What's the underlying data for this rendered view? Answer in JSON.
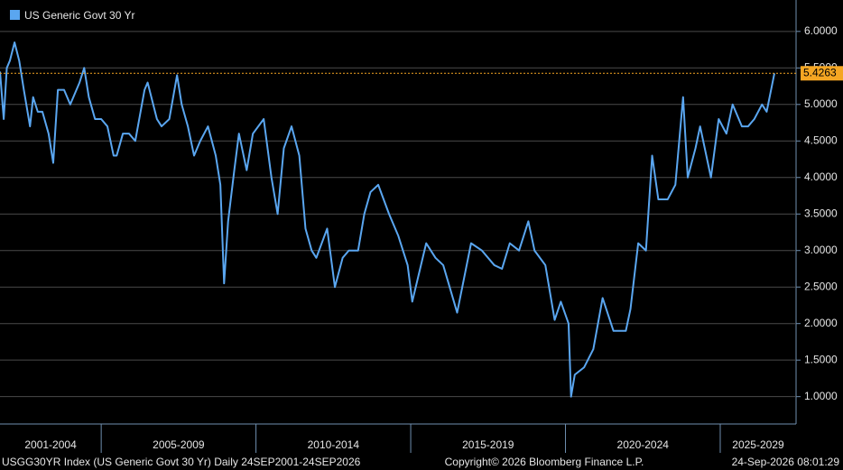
{
  "chart_data": {
    "type": "line",
    "x": [
      2001.73,
      2001.85,
      2001.95,
      2002.05,
      2002.2,
      2002.35,
      2002.5,
      2002.7,
      2002.8,
      2002.95,
      2003.1,
      2003.3,
      2003.45,
      2003.6,
      2003.8,
      2004.0,
      2004.3,
      2004.45,
      2004.6,
      2004.8,
      2005.0,
      2005.2,
      2005.4,
      2005.5,
      2005.7,
      2005.9,
      2006.1,
      2006.4,
      2006.5,
      2006.8,
      2006.95,
      2007.2,
      2007.45,
      2007.6,
      2007.8,
      2008.0,
      2008.2,
      2008.45,
      2008.7,
      2008.85,
      2008.97,
      2009.1,
      2009.3,
      2009.45,
      2009.7,
      2009.9,
      2010.25,
      2010.5,
      2010.7,
      2010.9,
      2011.15,
      2011.4,
      2011.6,
      2011.8,
      2011.95,
      2012.3,
      2012.55,
      2012.8,
      2013.0,
      2013.3,
      2013.5,
      2013.7,
      2013.95,
      2014.3,
      2014.6,
      2014.9,
      2015.05,
      2015.5,
      2015.8,
      2016.05,
      2016.5,
      2016.95,
      2017.3,
      2017.7,
      2017.95,
      2018.2,
      2018.5,
      2018.8,
      2019.0,
      2019.35,
      2019.65,
      2019.85,
      2020.1,
      2020.18,
      2020.3,
      2020.6,
      2020.9,
      2021.2,
      2021.55,
      2021.95,
      2022.1,
      2022.35,
      2022.6,
      2022.8,
      2023.0,
      2023.3,
      2023.55,
      2023.8,
      2023.95,
      2024.2,
      2024.35,
      2024.7,
      2024.95,
      2025.2,
      2025.4,
      2025.7,
      2025.9,
      2026.1,
      2026.35,
      2026.5,
      2026.75
    ],
    "series": [
      {
        "name": "US Generic Govt 30 Yr",
        "color": "#5aa6f0",
        "values": [
          5.45,
          4.8,
          5.5,
          5.6,
          5.85,
          5.6,
          5.2,
          4.7,
          5.1,
          4.9,
          4.9,
          4.6,
          4.2,
          5.2,
          5.2,
          5.0,
          5.3,
          5.5,
          5.1,
          4.8,
          4.8,
          4.7,
          4.3,
          4.3,
          4.6,
          4.6,
          4.5,
          5.2,
          5.3,
          4.8,
          4.7,
          4.8,
          5.4,
          5.0,
          4.7,
          4.3,
          4.5,
          4.7,
          4.3,
          3.9,
          2.55,
          3.4,
          4.1,
          4.6,
          4.1,
          4.6,
          4.8,
          4.0,
          3.5,
          4.4,
          4.7,
          4.3,
          3.3,
          3.0,
          2.9,
          3.3,
          2.5,
          2.9,
          3.0,
          3.0,
          3.5,
          3.8,
          3.9,
          3.5,
          3.2,
          2.8,
          2.3,
          3.1,
          2.9,
          2.8,
          2.15,
          3.1,
          3.0,
          2.8,
          2.75,
          3.1,
          3.0,
          3.4,
          3.0,
          2.8,
          2.05,
          2.3,
          2.0,
          1.0,
          1.3,
          1.4,
          1.65,
          2.35,
          1.9,
          1.9,
          2.2,
          3.1,
          3.0,
          4.3,
          3.7,
          3.7,
          3.9,
          5.1,
          4.0,
          4.4,
          4.7,
          4.0,
          4.8,
          4.6,
          5.0,
          4.7,
          4.7,
          4.8,
          5.0,
          4.9,
          5.4263
        ]
      }
    ],
    "xlim": [
      2001.73,
      2027.45
    ],
    "xticks": [
      2005,
      2010,
      2015,
      2020,
      2025
    ],
    "x_period_labels": [
      "2001-2004",
      "2005-2009",
      "2010-2014",
      "2015-2019",
      "2020-2024",
      "2025-2029"
    ],
    "ylim": [
      0.65,
      6.43
    ],
    "yticks": [
      {
        "value": 1,
        "label": "1.0000"
      },
      {
        "value": 1.5,
        "label": "1.5000"
      },
      {
        "value": 2,
        "label": "2.0000"
      },
      {
        "value": 2.5,
        "label": "2.5000"
      },
      {
        "value": 3,
        "label": "3.0000"
      },
      {
        "value": 3.5,
        "label": "3.5000"
      },
      {
        "value": 4,
        "label": "4.0000"
      },
      {
        "value": 4.5,
        "label": "4.5000"
      },
      {
        "value": 5,
        "label": "5.0000"
      },
      {
        "value": 5.5,
        "label": "5.5000"
      },
      {
        "value": 6,
        "label": "6.0000"
      }
    ],
    "grid": true,
    "last_value_color": "#f5a623",
    "footer": {
      "left": "USGG30YR Index (US Generic Govt 30 Yr) Daily 24SEP2001-24SEP2026",
      "center": "Copyright© 2026 Bloomberg Finance L.P.",
      "right": "24-Sep-2026 08:01:29"
    }
  }
}
